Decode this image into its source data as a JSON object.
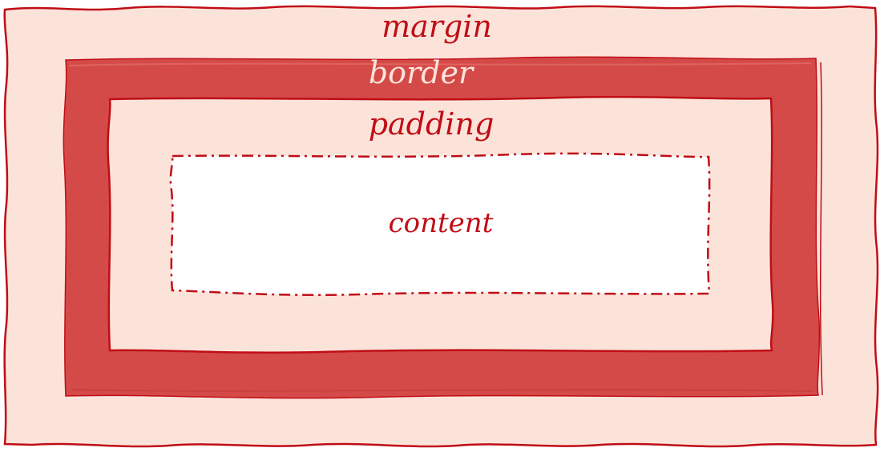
{
  "colors": {
    "margin_fill": "#fbe3da",
    "border_fill": "#d44a48",
    "padding_fill": "#fbe3da",
    "content_fill": "#ffffff",
    "stroke": "#c00d16",
    "border_label_text": "#fbe3da"
  },
  "layers": {
    "margin": "margin",
    "border": "border",
    "padding": "padding",
    "content": "content"
  }
}
